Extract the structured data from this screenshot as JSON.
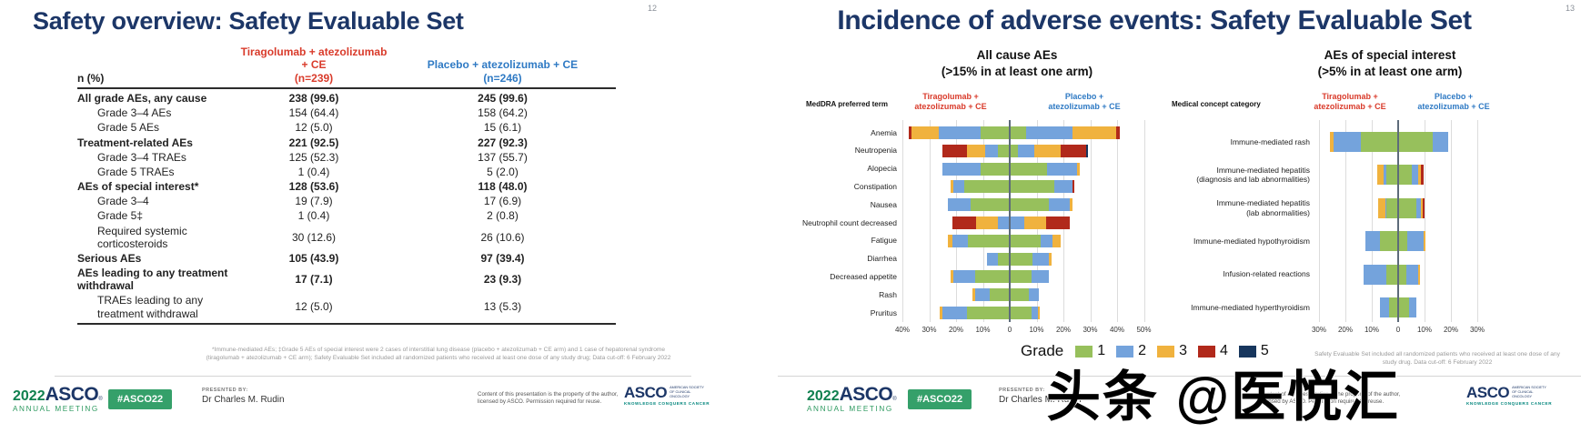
{
  "watermark": "头条 @医悦汇",
  "slide_left": {
    "page_number": "12",
    "title": "Safety overview: Safety Evaluable Set",
    "table": {
      "col0_header": "n (%)",
      "col1_header": "Tiragolumab + atezolizumab + CE",
      "col1_n": "(n=239)",
      "col2_header": "Placebo + atezolizumab + CE",
      "col2_n": "(n=246)",
      "rows": [
        {
          "label": "All grade AEs, any cause",
          "tira": "238 (99.6)",
          "placebo": "245 (99.6)",
          "bold": true,
          "indent": false
        },
        {
          "label": "Grade 3–4 AEs",
          "tira": "154 (64.4)",
          "placebo": "158 (64.2)",
          "bold": false,
          "indent": true
        },
        {
          "label": "Grade 5 AEs",
          "tira": "12 (5.0)",
          "placebo": "15 (6.1)",
          "bold": false,
          "indent": true
        },
        {
          "label": "Treatment-related AEs",
          "tira": "221 (92.5)",
          "placebo": "227 (92.3)",
          "bold": true,
          "indent": false
        },
        {
          "label": "Grade 3–4 TRAEs",
          "tira": "125 (52.3)",
          "placebo": "137 (55.7)",
          "bold": false,
          "indent": true
        },
        {
          "label": "Grade 5 TRAEs",
          "tira": "1 (0.4)",
          "placebo": "5 (2.0)",
          "bold": false,
          "indent": true
        },
        {
          "label": "AEs of special interest*",
          "tira": "128 (53.6)",
          "placebo": "118 (48.0)",
          "bold": true,
          "indent": false
        },
        {
          "label": "Grade 3–4",
          "tira": "19 (7.9)",
          "placebo": "17 (6.9)",
          "bold": false,
          "indent": true
        },
        {
          "label": "Grade 5‡",
          "tira": "1 (0.4)",
          "placebo": "2 (0.8)",
          "bold": false,
          "indent": true
        },
        {
          "label": "Required systemic corticosteroids",
          "tira": "30 (12.6)",
          "placebo": "26 (10.6)",
          "bold": false,
          "indent": true
        },
        {
          "label": "Serious AEs",
          "tira": "105 (43.9)",
          "placebo": "97 (39.4)",
          "bold": true,
          "indent": false
        },
        {
          "label": "AEs leading to any treatment withdrawal",
          "tira": "17 (7.1)",
          "placebo": "23 (9.3)",
          "bold": true,
          "indent": false
        },
        {
          "label": "TRAEs leading to any treatment withdrawal",
          "tira": "12 (5.0)",
          "placebo": "13 (5.3)",
          "bold": false,
          "indent": true
        }
      ]
    },
    "footnote": "*Immune-mediated AEs; ‡Grade 5 AEs of special interest were 2 cases of interstitial lung disease (placebo + atezolizumab + CE arm) and 1 case of hepatorenal syndrome (tiragolumab + atezolizumab + CE arm); Safety Evaluable Set included all randomized patients who received at least one dose of any study drug; Data cut-off: 6 February 2022"
  },
  "slide_right": {
    "page_number": "13",
    "title": "Incidence of adverse events: Safety Evaluable Set",
    "footnote": "Safety Evaluable Set included all randomized patients who received at least one dose of any study drug. Data cut-off: 6 February 2022",
    "legend": {
      "label": "Grade",
      "items": [
        {
          "grade": "1",
          "color": "#97c05c"
        },
        {
          "grade": "2",
          "color": "#74a3dc"
        },
        {
          "grade": "3",
          "color": "#f0b23e"
        },
        {
          "grade": "4",
          "color": "#b1291b"
        },
        {
          "grade": "5",
          "color": "#17365d"
        }
      ]
    }
  },
  "chart_data": [
    {
      "type": "bar",
      "variant": "diverging-stacked-horizontal",
      "title": "All cause AEs",
      "subtitle": "(>15% in at least one arm)",
      "axis_label": "MedDRA preferred term",
      "left_arm": "Tiragolumab +\natezolizumab + CE",
      "right_arm": "Placebo +\natezolizumab + CE",
      "grades": [
        "1",
        "2",
        "3",
        "4",
        "5"
      ],
      "unit": "%",
      "xlim": [
        -45,
        55
      ],
      "x_ticks": [
        {
          "label": "40%",
          "value": -40
        },
        {
          "label": "30%",
          "value": -30
        },
        {
          "label": "20%",
          "value": -20
        },
        {
          "label": "10%",
          "value": -10
        },
        {
          "label": "0",
          "value": 0
        },
        {
          "label": "10%",
          "value": 10
        },
        {
          "label": "20%",
          "value": 20
        },
        {
          "label": "30%",
          "value": 30
        },
        {
          "label": "40%",
          "value": 40
        },
        {
          "label": "50%",
          "value": 50
        }
      ],
      "rows": [
        {
          "category": "Anemia",
          "left": [
            11,
            15.5,
            10,
            1,
            0
          ],
          "right": [
            6,
            17.5,
            16,
            1.5,
            0
          ]
        },
        {
          "category": "Neutropenia",
          "left": [
            4.5,
            4.5,
            7,
            9,
            0
          ],
          "right": [
            3,
            6,
            10,
            9.5,
            0.5
          ]
        },
        {
          "category": "Alopecia",
          "left": [
            11,
            14,
            0,
            0,
            0
          ],
          "right": [
            14,
            11,
            1,
            0,
            0
          ]
        },
        {
          "category": "Constipation",
          "left": [
            17,
            4,
            1,
            0,
            0
          ],
          "right": [
            16.5,
            7,
            0,
            0.7,
            0
          ]
        },
        {
          "category": "Nausea",
          "left": [
            14.5,
            8.5,
            0,
            0,
            0
          ],
          "right": [
            14.5,
            8,
            1,
            0,
            0
          ]
        },
        {
          "category": "Neutrophil count decreased",
          "left": [
            0,
            4.5,
            8,
            9,
            0
          ],
          "right": [
            0,
            5.5,
            8,
            9,
            0
          ]
        },
        {
          "category": "Fatigue",
          "left": [
            15.5,
            6,
            1.5,
            0,
            0
          ],
          "right": [
            11.5,
            4.5,
            3,
            0,
            0
          ]
        },
        {
          "category": "Diarrhea",
          "left": [
            4.5,
            4,
            0,
            0,
            0
          ],
          "right": [
            8.5,
            6,
            1,
            0,
            0
          ]
        },
        {
          "category": "Decreased appetite",
          "left": [
            13,
            8,
            1,
            0,
            0
          ],
          "right": [
            8,
            6.5,
            0,
            0,
            0
          ]
        },
        {
          "category": "Rash",
          "left": [
            7.5,
            5.5,
            1,
            0,
            0
          ],
          "right": [
            7,
            4,
            0,
            0,
            0
          ]
        },
        {
          "category": "Pruritus",
          "left": [
            16,
            9,
            1,
            0,
            0
          ],
          "right": [
            8,
            2.5,
            0.8,
            0,
            0
          ]
        }
      ]
    },
    {
      "type": "bar",
      "variant": "diverging-stacked-horizontal",
      "title": "AEs of special interest",
      "subtitle": "(>5% in at least one arm)",
      "axis_label": "Medical concept category",
      "left_arm": "Tiragolumab +\natezolizumab + CE",
      "right_arm": "Placebo +\natezolizumab + CE",
      "grades": [
        "1",
        "2",
        "3",
        "4",
        "5"
      ],
      "unit": "%",
      "xlim": [
        -35,
        35
      ],
      "x_ticks": [
        {
          "label": "30%",
          "value": -30
        },
        {
          "label": "20%",
          "value": -20
        },
        {
          "label": "10%",
          "value": -10
        },
        {
          "label": "0",
          "value": 0
        },
        {
          "label": "10%",
          "value": 10
        },
        {
          "label": "20%",
          "value": 20
        },
        {
          "label": "30%",
          "value": 30
        }
      ],
      "rows": [
        {
          "category": "Immune-mediated rash",
          "left": [
            14,
            10.5,
            1.5,
            0,
            0
          ],
          "right": [
            13,
            6,
            0,
            0,
            0
          ]
        },
        {
          "category": "Immune-mediated hepatitis\n(diagnosis and lab abnormalities)",
          "left": [
            4.5,
            1,
            2.5,
            0,
            0
          ],
          "right": [
            5,
            2.5,
            1,
            1,
            0
          ]
        },
        {
          "category": "Immune-mediated hepatitis\n(lab abnormalities)",
          "left": [
            4.5,
            0.5,
            2.5,
            0,
            0
          ],
          "right": [
            7,
            1.5,
            0.8,
            0.8,
            0
          ]
        },
        {
          "category": "Immune-mediated hypothyroidism",
          "left": [
            7,
            5.5,
            0,
            0,
            0
          ],
          "right": [
            3.5,
            6,
            1,
            0,
            0
          ]
        },
        {
          "category": "Infusion-related reactions",
          "left": [
            4.5,
            8.5,
            0,
            0,
            0
          ],
          "right": [
            3,
            4.5,
            0.8,
            0,
            0
          ]
        },
        {
          "category": "Immune-mediated hyperthyroidism",
          "left": [
            3.5,
            3.5,
            0,
            0,
            0
          ],
          "right": [
            4,
            3,
            0,
            0,
            0
          ]
        }
      ]
    }
  ],
  "footer": {
    "logo_year": "2022",
    "logo_asco": "ASCO",
    "logo_reg": "®",
    "logo_meeting": "ANNUAL MEETING",
    "hashtag": "#ASCO22",
    "presented_by_label": "PRESENTED BY:",
    "presenter": "Dr Charles M. Rudin",
    "content_notice": "Content of this presentation is the property of the author, licensed by ASCO. Permission required for reuse.",
    "asco_logo": "ASCO",
    "asco_society": "AMERICAN SOCIETY OF CLINICAL ONCOLOGY",
    "asco_tagline": "KNOWLEDGE CONQUERS CANCER"
  }
}
